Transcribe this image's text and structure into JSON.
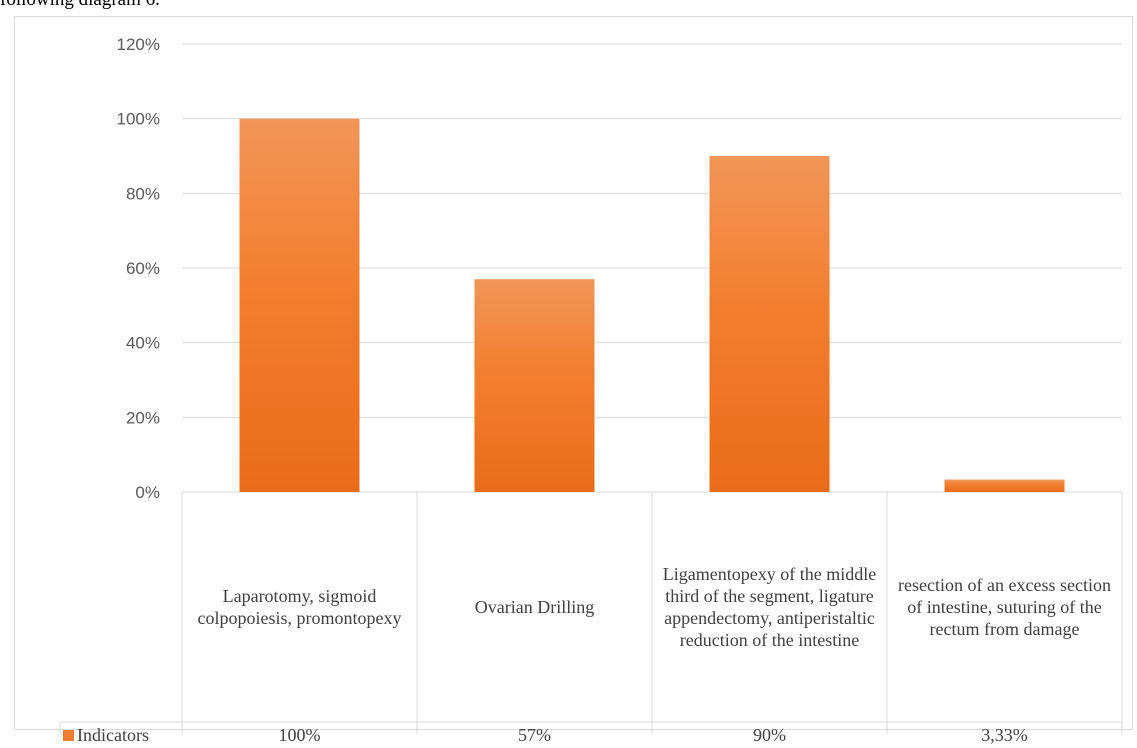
{
  "page": {
    "heading_fragment": "following diagram 6."
  },
  "chart_data": {
    "type": "bar",
    "categories": [
      "Laparotomy, sigmoid colpopoiesis, promontopexy",
      "Ovarian Drilling",
      "Ligamentopexy of the middle third of the segment, ligature appendectomy, antiperistaltic reduction of the intestine",
      "resection of an excess section of intestine, suturing of the rectum from damage"
    ],
    "series": [
      {
        "name": "Indicators",
        "values": [
          100,
          57,
          90,
          3.33
        ],
        "labels": [
          "100%",
          "57%",
          "90%",
          "3,33%"
        ]
      }
    ],
    "yticks": [
      "0%",
      "20%",
      "40%",
      "60%",
      "80%",
      "100%",
      "120%"
    ],
    "ylim": [
      0,
      120
    ],
    "title": "",
    "xlabel": "",
    "ylabel": "",
    "grid": true,
    "legend_position": "data-table",
    "colors": {
      "bar": "#ed7d31",
      "bar_top": "#f19659",
      "grid": "#d9d9d9",
      "text": "#595959"
    }
  }
}
